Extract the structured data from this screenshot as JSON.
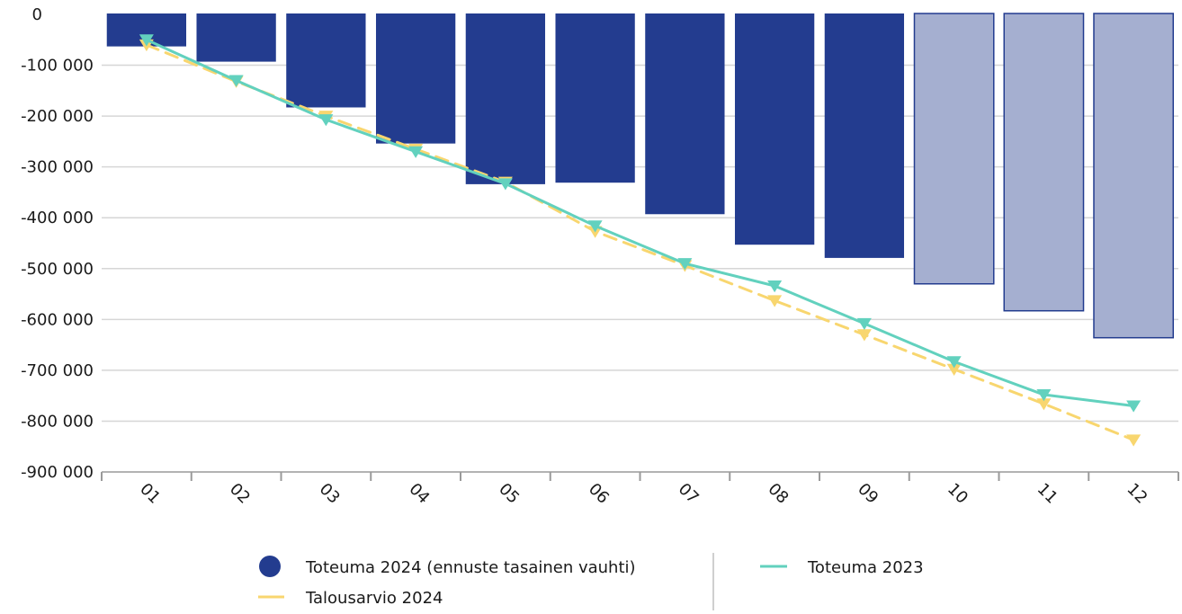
{
  "chart_data": {
    "type": "bar",
    "categories": [
      "01",
      "02",
      "03",
      "04",
      "05",
      "06",
      "07",
      "08",
      "09",
      "10",
      "11",
      "12"
    ],
    "y_tick_labels": [
      "0",
      "-100 000",
      "-200 000",
      "-300 000",
      "-400 000",
      "-500 000",
      "-600 000",
      "-700 000",
      "-800 000",
      "-900 000"
    ],
    "ylim": [
      -900000,
      0
    ],
    "grid": true,
    "legend_position": "bottom",
    "series": [
      {
        "name": "Toteuma 2024 (ennuste tasainen vauhti)",
        "kind": "bar",
        "color": "#233C8F",
        "forecast_color": "#A5AFD0",
        "forecast_from_index": 9,
        "values": [
          -63000,
          -93000,
          -183000,
          -254000,
          -334000,
          -331000,
          -393000,
          -453000,
          -479000,
          -530000,
          -583000,
          -636000
        ]
      },
      {
        "name": "Talousarvio 2024",
        "kind": "line-dashed",
        "color": "#F8D66F",
        "marker": "triangle-down",
        "values": [
          -60000,
          -132000,
          -200000,
          -265000,
          -330000,
          -427000,
          -494000,
          -563000,
          -630000,
          -698000,
          -766000,
          -837000
        ]
      },
      {
        "name": "Toteuma 2023",
        "kind": "line",
        "color": "#62D1BE",
        "marker": "triangle-down",
        "values": [
          -50000,
          -130000,
          -207000,
          -270000,
          -333000,
          -416000,
          -490000,
          -534000,
          -608000,
          -683000,
          -748000,
          -770000
        ]
      }
    ]
  },
  "legend": {
    "items": [
      {
        "label": "Toteuma 2024 (ennuste tasainen vauhti)",
        "symbol": "circle",
        "color": "#233C8F"
      },
      {
        "label": "Toteuma 2023",
        "symbol": "line",
        "color": "#62D1BE"
      },
      {
        "label": "Talousarvio 2024",
        "symbol": "line",
        "color": "#F8D66F"
      }
    ]
  }
}
